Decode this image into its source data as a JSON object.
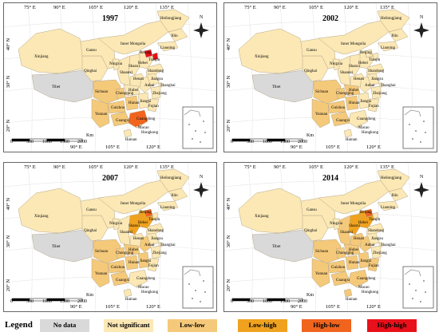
{
  "panels": [
    {
      "year": "1997"
    },
    {
      "year": "2002"
    },
    {
      "year": "2007"
    },
    {
      "year": "2014"
    }
  ],
  "longitude_labels_top": [
    "75° E",
    "90° E",
    "105° E",
    "120° E",
    "135° E"
  ],
  "longitude_labels_bottom": [
    "90° E",
    "105° E",
    "120° E"
  ],
  "latitude_labels": [
    "40° N",
    "30° N",
    "20° N"
  ],
  "north_arrow_label": "N",
  "scale_bar": {
    "ticks": [
      "0",
      "500",
      "1000",
      "1500",
      "2000"
    ],
    "unit": "Km"
  },
  "provinces": [
    "Xinjiang",
    "Tibet",
    "Qinghai",
    "Gansu",
    "Inner Mongolia",
    "Heilongjiang",
    "Jilin",
    "Liaoning",
    "Hebei",
    "Beijing",
    "Tianjin",
    "Shanxi",
    "Shaanxi",
    "Ningxia",
    "Henan",
    "Shandong",
    "Jiangsu",
    "Anhui",
    "Shanghai",
    "Zhejiang",
    "Hubei",
    "Hunan",
    "Jiangxi",
    "Fujian",
    "Sichuan",
    "Chongqing",
    "Guizhou",
    "Yunnan",
    "Guangxi",
    "Guangdong",
    "Hainan",
    "Macao",
    "Hongkong"
  ],
  "legend": {
    "title": "Legend",
    "items": [
      {
        "label": "No data",
        "color": "#d9d9d9"
      },
      {
        "label": "Not  significant",
        "color": "#fbe8b5"
      },
      {
        "label": "Low-low",
        "color": "#f5c97a"
      },
      {
        "label": "Low-high",
        "color": "#f0a21f"
      },
      {
        "label": "High-low",
        "color": "#f0641e"
      },
      {
        "label": "High-high",
        "color": "#e8101a"
      }
    ]
  },
  "lisa_clusters": {
    "1997": {
      "Low-low": [
        "Sichuan",
        "Chongqing",
        "Guizhou",
        "Yunnan",
        "Guangxi",
        "Hunan"
      ],
      "High-low": [
        "Guangdong"
      ],
      "High-high": [
        "Beijing",
        "Tianjin"
      ]
    },
    "2002": {
      "Low-low": [
        "Sichuan",
        "Chongqing",
        "Guizhou",
        "Yunnan",
        "Guangxi",
        "Hunan",
        "Hubei"
      ]
    },
    "2007": {
      "Low-low": [
        "Sichuan",
        "Chongqing",
        "Guizhou",
        "Yunnan",
        "Guangxi",
        "Hunan",
        "Hubei",
        "Jiangxi",
        "Anhui"
      ],
      "Low-high": [
        "Hebei",
        "Shanxi"
      ],
      "High-low": [
        "Beijing"
      ]
    },
    "2014": {
      "Low-low": [
        "Sichuan",
        "Chongqing",
        "Guizhou",
        "Yunnan",
        "Guangxi",
        "Hunan",
        "Hubei",
        "Jiangxi",
        "Anhui",
        "Henan",
        "Shaanxi",
        "Guangdong",
        "Hainan",
        "Fujian"
      ],
      "Low-high": [
        "Hebei",
        "Shanxi"
      ],
      "High-low": [
        "Beijing"
      ]
    }
  }
}
